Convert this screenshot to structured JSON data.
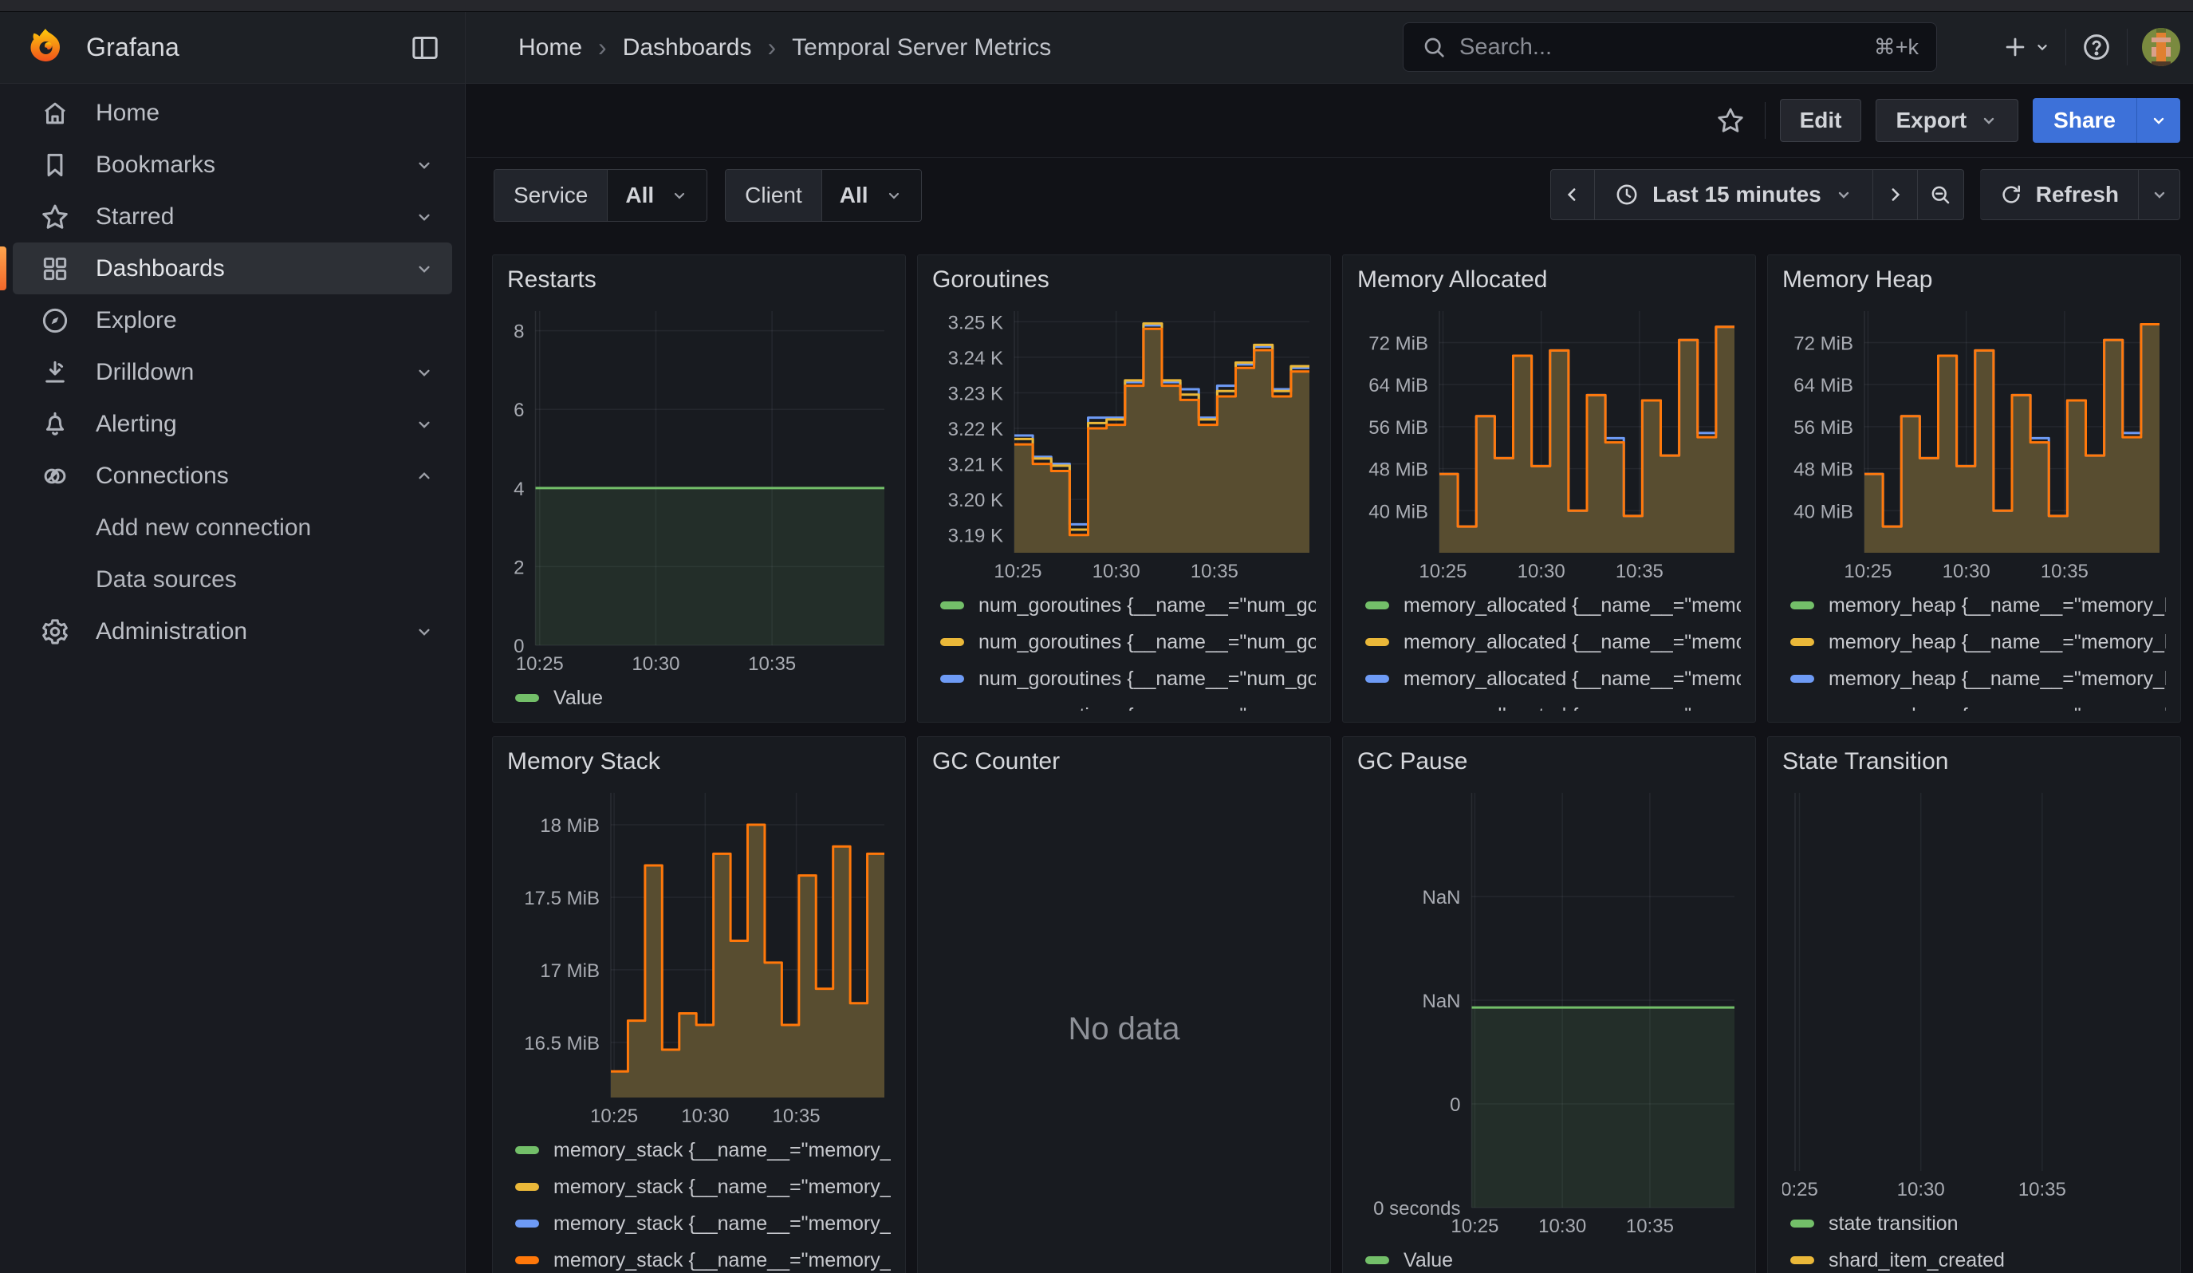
{
  "header": {
    "brand": "Grafana",
    "breadcrumb": [
      "Home",
      "Dashboards",
      "Temporal Server Metrics"
    ],
    "breadcrumb_separator": "›",
    "search": {
      "placeholder": "Search...",
      "shortcut": "⌘+k"
    }
  },
  "toolbar": {
    "edit": "Edit",
    "export": "Export",
    "share": "Share"
  },
  "filters": [
    {
      "label": "Service",
      "value": "All"
    },
    {
      "label": "Client",
      "value": "All"
    }
  ],
  "timepicker": {
    "range": "Last 15 minutes",
    "refresh": "Refresh"
  },
  "sidebar": {
    "items": [
      {
        "label": "Home"
      },
      {
        "label": "Bookmarks"
      },
      {
        "label": "Starred"
      },
      {
        "label": "Dashboards"
      },
      {
        "label": "Explore"
      },
      {
        "label": "Drilldown"
      },
      {
        "label": "Alerting"
      },
      {
        "label": "Connections"
      },
      {
        "label": "Add new connection"
      },
      {
        "label": "Data sources"
      },
      {
        "label": "Administration"
      }
    ]
  },
  "colors": {
    "green": "#73BF69",
    "yellow": "#EAB839",
    "blue": "#6E9BF5",
    "orange": "#FF780A",
    "olive_fill": "#584d30",
    "accent_blue": "#3D71D9"
  },
  "panels": [
    {
      "title": "Restarts",
      "legend": [
        {
          "color": "#73BF69",
          "label": "Value"
        }
      ],
      "chart_data": {
        "type": "steps",
        "ylim": [
          0,
          8.5
        ],
        "yticks": [
          {
            "v": 8,
            "label": "8"
          },
          {
            "v": 6,
            "label": "6"
          },
          {
            "v": 4,
            "label": "4"
          },
          {
            "v": 2,
            "label": "2"
          },
          {
            "v": 0,
            "label": "0"
          }
        ],
        "xticks": [
          {
            "f": 0.012,
            "label": "10:25"
          },
          {
            "f": 0.345,
            "label": "10:30"
          },
          {
            "f": 0.678,
            "label": "10:35"
          }
        ],
        "series": [
          {
            "color": "#73BF69",
            "values": [
              4
            ],
            "fill": "rgba(115,191,105,0.12)"
          }
        ]
      }
    },
    {
      "title": "Goroutines",
      "legend": [
        {
          "color": "#73BF69",
          "label": "num_goroutines {__name__=\"num_go"
        },
        {
          "color": "#EAB839",
          "label": "num_goroutines {__name__=\"num_go"
        },
        {
          "color": "#6E9BF5",
          "label": "num_goroutines {__name__=\"num_go"
        },
        {
          "color": "#FF780A",
          "label": "num_goroutines {__name__=\"num_go"
        }
      ],
      "chart_data": {
        "type": "steps",
        "ylim": [
          3185,
          3253
        ],
        "yticks": [
          {
            "v": 3250,
            "label": "3.25 K"
          },
          {
            "v": 3240,
            "label": "3.24 K"
          },
          {
            "v": 3230,
            "label": "3.23 K"
          },
          {
            "v": 3220,
            "label": "3.22 K"
          },
          {
            "v": 3210,
            "label": "3.21 K"
          },
          {
            "v": 3200,
            "label": "3.20 K"
          },
          {
            "v": 3190,
            "label": "3.19 K"
          }
        ],
        "xticks": [
          {
            "f": 0.012,
            "label": "10:25"
          },
          {
            "f": 0.345,
            "label": "10:30"
          },
          {
            "f": 0.678,
            "label": "10:35"
          }
        ],
        "series": [
          {
            "color": "#6E9BF5",
            "values": [
              3218,
              3212,
              3210,
              3193,
              3223,
              3223,
              3233,
              3249,
              3233,
              3231,
              3223,
              3232,
              3238,
              3243,
              3231,
              3237
            ]
          },
          {
            "color": "#EAB839",
            "values": [
              3217,
              3211.5,
              3209.5,
              3191.5,
              3221.5,
              3222.5,
              3233.5,
              3249.5,
              3233.5,
              3229.5,
              3222.5,
              3230.5,
              3238.5,
              3243.5,
              3230.5,
              3237.5
            ]
          },
          {
            "color": "#FF780A",
            "values": [
              3215.5,
              3210,
              3208,
              3190,
              3220,
              3221,
              3232,
              3248,
              3232,
              3228,
              3221,
              3229,
              3237,
              3242,
              3229,
              3236
            ],
            "fill": "#584d30"
          }
        ]
      }
    },
    {
      "title": "Memory Allocated",
      "legend": [
        {
          "color": "#73BF69",
          "label": "memory_allocated {__name__=\"memo"
        },
        {
          "color": "#EAB839",
          "label": "memory_allocated {__name__=\"memo"
        },
        {
          "color": "#6E9BF5",
          "label": "memory_allocated {__name__=\"memo"
        },
        {
          "color": "#FF780A",
          "label": "memory_allocated {__name__=\"memo"
        }
      ],
      "chart_data": {
        "type": "steps",
        "ylim": [
          32,
          78
        ],
        "yticks": [
          {
            "v": 72,
            "label": "72 MiB"
          },
          {
            "v": 64,
            "label": "64 MiB"
          },
          {
            "v": 56,
            "label": "56 MiB"
          },
          {
            "v": 48,
            "label": "48 MiB"
          },
          {
            "v": 40,
            "label": "40 MiB"
          }
        ],
        "xticks": [
          {
            "f": 0.012,
            "label": "10:25"
          },
          {
            "f": 0.345,
            "label": "10:30"
          },
          {
            "f": 0.678,
            "label": "10:35"
          }
        ],
        "series": [
          {
            "color": "#6E9BF5",
            "values": [
              47,
              37,
              58,
              50,
              69.5,
              48.5,
              70.5,
              40,
              62,
              53.8,
              39,
              61,
              50.5,
              72.5,
              54.8,
              75
            ]
          },
          {
            "color": "#FF780A",
            "values": [
              47,
              37,
              58,
              50,
              69.5,
              48.5,
              70.5,
              40,
              62,
              53,
              39,
              61,
              50.5,
              72.5,
              54,
              75
            ],
            "fill": "#584d30"
          }
        ]
      }
    },
    {
      "title": "Memory Heap",
      "legend": [
        {
          "color": "#73BF69",
          "label": "memory_heap {__name__=\"memory_h"
        },
        {
          "color": "#EAB839",
          "label": "memory_heap {__name__=\"memory_h"
        },
        {
          "color": "#6E9BF5",
          "label": "memory_heap {__name__=\"memory_h"
        },
        {
          "color": "#FF780A",
          "label": "memory_heap {__name__=\"memory_h"
        }
      ],
      "chart_data": {
        "type": "steps",
        "ylim": [
          32,
          78
        ],
        "yticks": [
          {
            "v": 72,
            "label": "72 MiB"
          },
          {
            "v": 64,
            "label": "64 MiB"
          },
          {
            "v": 56,
            "label": "56 MiB"
          },
          {
            "v": 48,
            "label": "48 MiB"
          },
          {
            "v": 40,
            "label": "40 MiB"
          }
        ],
        "xticks": [
          {
            "f": 0.012,
            "label": "10:25"
          },
          {
            "f": 0.345,
            "label": "10:30"
          },
          {
            "f": 0.678,
            "label": "10:35"
          }
        ],
        "series": [
          {
            "color": "#6E9BF5",
            "values": [
              47,
              37,
              58,
              50,
              69.5,
              48.5,
              70.5,
              40,
              62,
              53.8,
              39,
              61,
              50.5,
              72.5,
              54.8,
              75.5
            ]
          },
          {
            "color": "#FF780A",
            "values": [
              47,
              37,
              58,
              50,
              69.5,
              48.5,
              70.5,
              40,
              62,
              53,
              39,
              61,
              50.5,
              72.5,
              54,
              75.5
            ],
            "fill": "#584d30"
          }
        ]
      }
    },
    {
      "title": "Memory Stack",
      "legend": [
        {
          "color": "#73BF69",
          "label": "memory_stack {__name__=\"memory_s"
        },
        {
          "color": "#EAB839",
          "label": "memory_stack {__name__=\"memory_s"
        },
        {
          "color": "#6E9BF5",
          "label": "memory_stack {__name__=\"memory_s"
        },
        {
          "color": "#FF780A",
          "label": "memory_stack {__name__=\"memory_s"
        }
      ],
      "chart_data": {
        "type": "steps",
        "ylim": [
          16.12,
          18.22
        ],
        "yticks": [
          {
            "v": 18,
            "label": "18 MiB"
          },
          {
            "v": 17.5,
            "label": "17.5 MiB"
          },
          {
            "v": 17,
            "label": "17 MiB"
          },
          {
            "v": 16.5,
            "label": "16.5 MiB"
          }
        ],
        "xticks": [
          {
            "f": 0.012,
            "label": "10:25"
          },
          {
            "f": 0.345,
            "label": "10:30"
          },
          {
            "f": 0.678,
            "label": "10:35"
          }
        ],
        "series": [
          {
            "color": "#FF780A",
            "values": [
              16.3,
              16.65,
              17.72,
              16.45,
              16.7,
              16.62,
              17.8,
              17.2,
              18.0,
              17.05,
              16.62,
              17.65,
              16.87,
              17.85,
              16.77,
              17.8
            ],
            "fill": "#584d30"
          }
        ]
      }
    },
    {
      "title": "GC Counter",
      "no_data": "No data",
      "legend": []
    },
    {
      "title": "GC Pause",
      "legend": [
        {
          "color": "#73BF69",
          "label": "Value"
        }
      ],
      "chart_data": {
        "type": "steps",
        "ylim": [
          0,
          4
        ],
        "yticks": [
          {
            "v": 3,
            "label": "NaN"
          },
          {
            "v": 2,
            "label": "NaN"
          },
          {
            "v": 1,
            "label": "0"
          },
          {
            "v": 0,
            "label": "0 seconds"
          }
        ],
        "xticks": [
          {
            "f": 0.012,
            "label": "10:25"
          },
          {
            "f": 0.345,
            "label": "10:30"
          },
          {
            "f": 0.678,
            "label": "10:35"
          }
        ],
        "series": [
          {
            "color": "#73BF69",
            "values": [
              1.93
            ],
            "fill": "rgba(115,191,105,0.12)"
          }
        ]
      }
    },
    {
      "title": "State Transition",
      "legend": [
        {
          "color": "#73BF69",
          "label": "state transition"
        },
        {
          "color": "#EAB839",
          "label": "shard_item_created"
        }
      ],
      "chart_data": {
        "type": "steps",
        "ylim": [
          0,
          1
        ],
        "yticks": [],
        "xticks": [
          {
            "f": 0.012,
            "label": "0:25"
          },
          {
            "f": 0.345,
            "label": "10:30"
          },
          {
            "f": 0.678,
            "label": "10:35"
          }
        ],
        "series": []
      }
    }
  ]
}
